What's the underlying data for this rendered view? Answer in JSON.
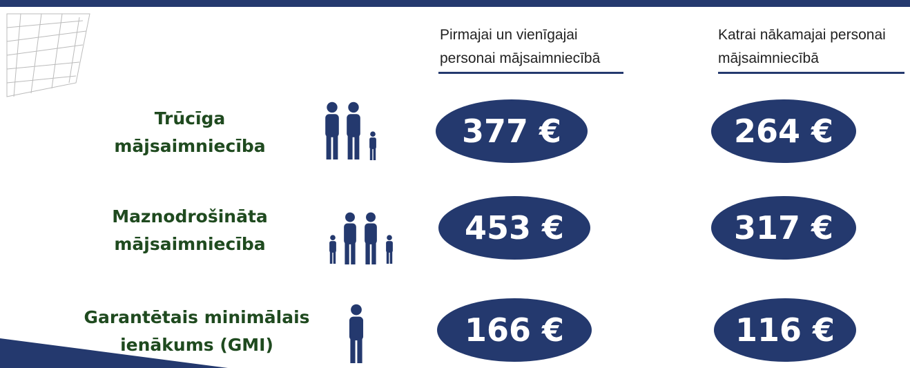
{
  "columns": [
    {
      "header": [
        "Pirmajai un vienīgajai",
        "personai mājsaimniecībā"
      ]
    },
    {
      "header": [
        "Katrai nākamajai personai",
        "mājsaimniecībā"
      ]
    }
  ],
  "rows": [
    {
      "label": [
        "Trūcīga",
        "mājsaimniecība"
      ],
      "values": [
        "377 €",
        "264 €"
      ]
    },
    {
      "label": [
        "Maznodrošināta",
        "mājsaimniecība"
      ],
      "values": [
        "453 €",
        "317 €"
      ]
    },
    {
      "label": [
        "Garantētais minimālais",
        "ienākums (GMI)"
      ],
      "values": [
        "166 €",
        "116 €"
      ]
    }
  ]
}
